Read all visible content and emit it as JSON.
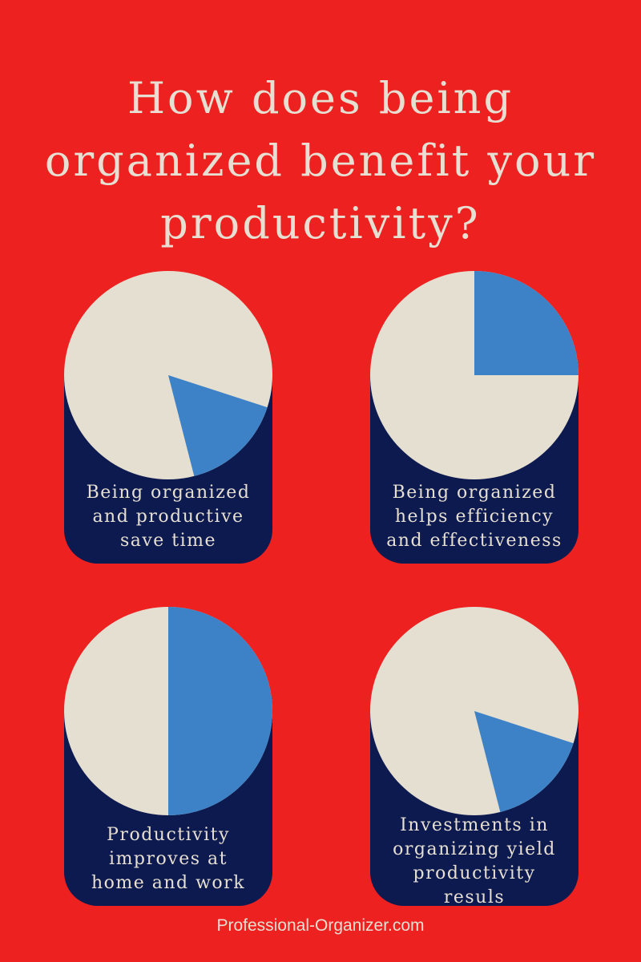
{
  "title": {
    "line1": "How does being",
    "line2": "organized benefit your",
    "line3": "productivity?"
  },
  "colors": {
    "background": "#ee2121",
    "panel": "#0d1a4f",
    "pie_base": "#e5dfd1",
    "pie_accent": "#3d82c6",
    "text": "#e6dfd2"
  },
  "cards": [
    {
      "caption": [
        "Being organized",
        "and productive",
        "save time"
      ],
      "accent_share": 0.16
    },
    {
      "caption": [
        "Being organized",
        "helps efficiency",
        "and effectiveness"
      ],
      "accent_share": 0.25
    },
    {
      "caption": [
        "Productivity",
        "improves at",
        "home and work"
      ],
      "accent_share": 0.5
    },
    {
      "caption": [
        "Investments in",
        "organizing yield",
        "productivity",
        "resuls"
      ],
      "accent_share": 0.16
    }
  ],
  "footer": "Professional-Organizer.com"
}
